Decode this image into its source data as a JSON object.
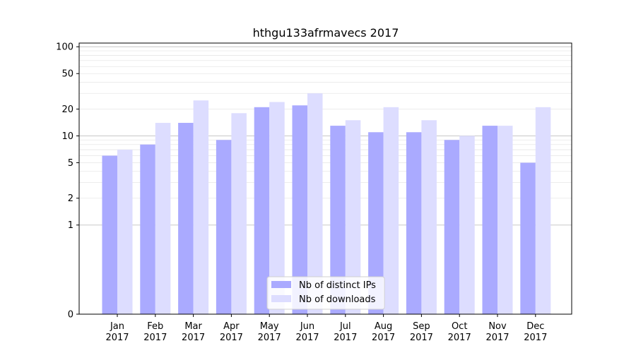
{
  "chart_data": {
    "type": "bar",
    "title": "hthgu133afrmavecs 2017",
    "xlabel": "",
    "ylabel": "",
    "yscale": "symlog",
    "ylim": [
      0,
      110
    ],
    "yticks": [
      0,
      1,
      2,
      5,
      10,
      20,
      50,
      100
    ],
    "categories": [
      [
        "Jan",
        "2017"
      ],
      [
        "Feb",
        "2017"
      ],
      [
        "Mar",
        "2017"
      ],
      [
        "Apr",
        "2017"
      ],
      [
        "May",
        "2017"
      ],
      [
        "Jun",
        "2017"
      ],
      [
        "Jul",
        "2017"
      ],
      [
        "Aug",
        "2017"
      ],
      [
        "Sep",
        "2017"
      ],
      [
        "Oct",
        "2017"
      ],
      [
        "Nov",
        "2017"
      ],
      [
        "Dec",
        "2017"
      ]
    ],
    "series": [
      {
        "name": "Nb of distinct IPs",
        "color": "#aaaaff",
        "values": [
          6,
          8,
          14,
          9,
          21,
          22,
          13,
          11,
          11,
          9,
          13,
          5
        ]
      },
      {
        "name": "Nb of downloads",
        "color": "#ddddff",
        "values": [
          7,
          14,
          25,
          18,
          24,
          30,
          15,
          21,
          15,
          10,
          13,
          21
        ]
      }
    ],
    "legend": "lower-center",
    "grid": true
  }
}
